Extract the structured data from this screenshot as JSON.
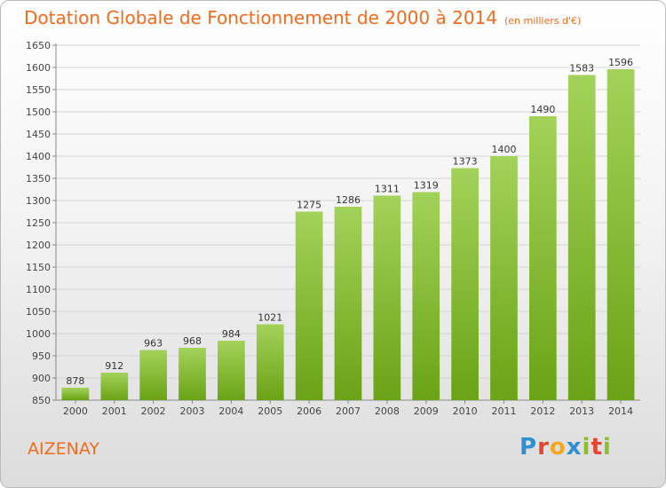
{
  "title": "Dotation Globale de Fonctionnement de 2000 à 2014",
  "unit": "(en milliers d'€)",
  "location": "AIZENAY",
  "brand": {
    "letters": [
      "P",
      "r",
      "o",
      "x",
      "i",
      "t",
      "i"
    ],
    "colors": [
      "#2f8fd0",
      "#e8432e",
      "#f5a623",
      "#2f8fd0",
      "#8cbf26",
      "#e8432e",
      "#8cbf26"
    ]
  },
  "colors": {
    "accent": "#f26b1d",
    "bar_light": "#a3d25a",
    "bar_dark": "#6aa315"
  },
  "chart_data": {
    "type": "bar",
    "categories": [
      "2000",
      "2001",
      "2002",
      "2003",
      "2004",
      "2005",
      "2006",
      "2007",
      "2008",
      "2009",
      "2010",
      "2011",
      "2012",
      "2013",
      "2014"
    ],
    "values": [
      878,
      912,
      963,
      968,
      984,
      1021,
      1275,
      1286,
      1311,
      1319,
      1373,
      1400,
      1490,
      1583,
      1596
    ],
    "yticks": [
      850,
      900,
      950,
      1000,
      1050,
      1100,
      1150,
      1200,
      1250,
      1300,
      1350,
      1400,
      1450,
      1500,
      1550,
      1600,
      1650
    ],
    "ylim": [
      850,
      1650
    ],
    "grid": true,
    "legend": "none"
  }
}
